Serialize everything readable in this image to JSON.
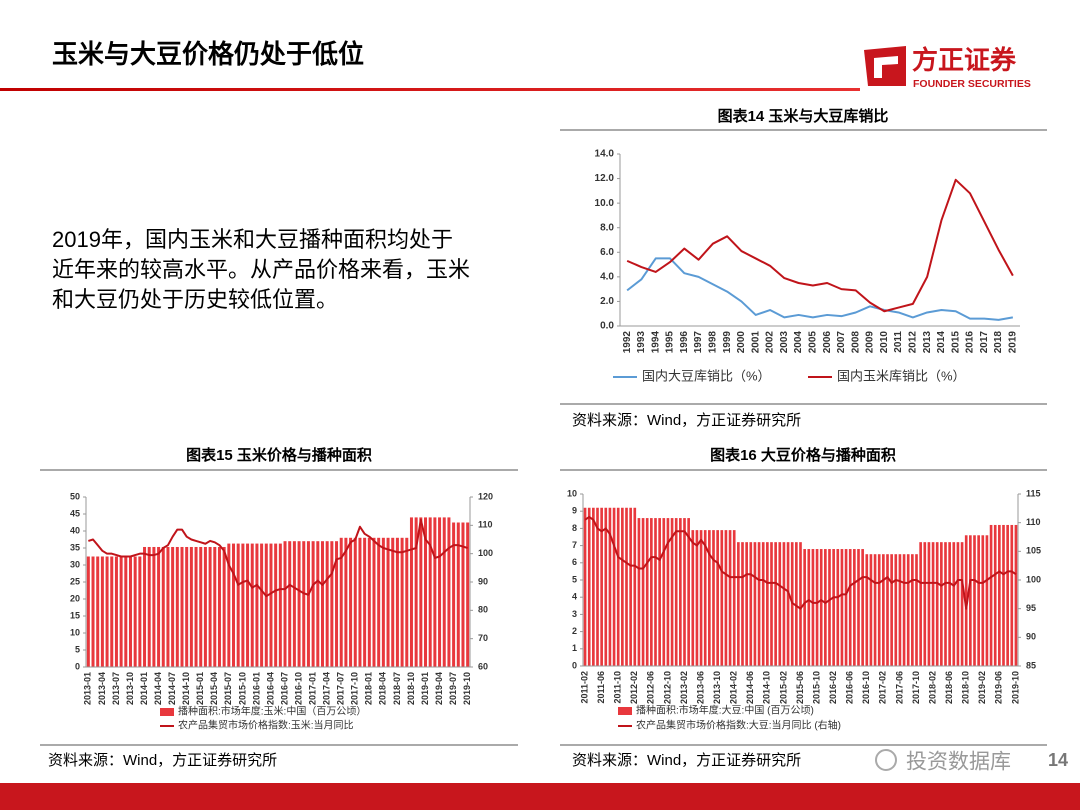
{
  "header": {
    "title": "玉米与大豆价格仍处于低位"
  },
  "logo": {
    "name": "方正证券",
    "subtitle": "FOUNDER SECURITIES"
  },
  "body_text": [
    "2019年，国内玉米和大豆播种面积均处于",
    "近年来的较高水平。从产品价格来看，玉米",
    "和大豆仍处于历史较低位置。"
  ],
  "chart_data": [
    {
      "type": "line",
      "title": "图表14 玉米与大豆库销比",
      "source": "资料来源：Wind，方正证券研究所",
      "categories": [
        "1992",
        "1993",
        "1994",
        "1995",
        "1996",
        "1997",
        "1998",
        "1999",
        "2000",
        "2001",
        "2002",
        "2003",
        "2004",
        "2005",
        "2006",
        "2007",
        "2008",
        "2009",
        "2010",
        "2011",
        "2012",
        "2013",
        "2014",
        "2015",
        "2016",
        "2017",
        "2018",
        "2019"
      ],
      "series": [
        {
          "name": "国内大豆库销比（%）",
          "color": "#5b9bd5",
          "values": [
            2.9,
            3.8,
            5.5,
            5.5,
            4.3,
            4.0,
            3.4,
            2.8,
            2.0,
            0.9,
            1.3,
            0.7,
            0.9,
            0.7,
            0.9,
            0.8,
            1.1,
            1.6,
            1.3,
            1.1,
            0.7,
            1.1,
            1.3,
            1.2,
            0.6,
            0.6,
            0.5,
            0.7
          ]
        },
        {
          "name": "国内玉米库销比（%）",
          "color": "#c0141a",
          "values": [
            5.3,
            4.8,
            4.4,
            5.2,
            6.3,
            5.4,
            6.7,
            7.3,
            6.1,
            5.5,
            4.9,
            3.9,
            3.5,
            3.3,
            3.5,
            3.0,
            2.9,
            1.9,
            1.2,
            1.5,
            1.8,
            4.0,
            8.6,
            11.9,
            10.8,
            8.5,
            6.2,
            4.1
          ]
        }
      ],
      "ylim": [
        0,
        14
      ],
      "yticks": [
        {
          "value": 0,
          "label": "0.0"
        },
        {
          "value": 2,
          "label": "2.0"
        },
        {
          "value": 4,
          "label": "4.0"
        },
        {
          "value": 6,
          "label": "6.0"
        },
        {
          "value": 8,
          "label": "8.0"
        },
        {
          "value": 10,
          "label": "10.0"
        },
        {
          "value": 12,
          "label": "12.0"
        },
        {
          "value": 14,
          "label": "14.0"
        }
      ],
      "grid": false,
      "legend": "bottom"
    },
    {
      "type": "bar-line",
      "title": "图表15 玉米价格与播种面积",
      "source": "资料来源：Wind，方正证券研究所",
      "categories": [
        "2013-01",
        null,
        null,
        "2013-04",
        null,
        null,
        "2013-07",
        null,
        null,
        "2013-10",
        null,
        null,
        "2014-01",
        null,
        null,
        "2014-04",
        null,
        null,
        "2014-07",
        null,
        null,
        "2014-10",
        null,
        null,
        "2015-01",
        null,
        null,
        "2015-04",
        null,
        null,
        "2015-07",
        null,
        null,
        "2015-10",
        null,
        null,
        "2016-01",
        null,
        null,
        "2016-04",
        null,
        null,
        "2016-07",
        null,
        null,
        "2016-10",
        null,
        null,
        "2017-01",
        null,
        null,
        "2017-04",
        null,
        null,
        "2017-07",
        null,
        null,
        "2017-10",
        null,
        null,
        "2018-01",
        null,
        null,
        "2018-04",
        null,
        null,
        "2018-07",
        null,
        null,
        "2018-10",
        null,
        null,
        "2019-01",
        null,
        null,
        "2019-04",
        null,
        null,
        "2019-07",
        null,
        null,
        "2019-10"
      ],
      "series": [
        {
          "name": "播种面积:市场年度:玉米:中国（百万公顷）",
          "type": "bar",
          "color": "#e8383d",
          "values": [
            32.5,
            32.5,
            32.5,
            32.5,
            32.5,
            32.5,
            32.5,
            32.5,
            32.5,
            32.5,
            32.5,
            32.5,
            35.3,
            35.3,
            35.3,
            35.3,
            35.3,
            35.3,
            35.3,
            35.3,
            35.3,
            35.3,
            35.3,
            35.3,
            35.3,
            35.3,
            35.3,
            35.3,
            35.3,
            35.3,
            36.3,
            36.3,
            36.3,
            36.3,
            36.3,
            36.3,
            36.3,
            36.3,
            36.3,
            36.3,
            36.3,
            36.3,
            37,
            37,
            37,
            37,
            37,
            37,
            37,
            37,
            37,
            37,
            37,
            37,
            38,
            38,
            38,
            38,
            38,
            38,
            38,
            38,
            38,
            38,
            38,
            38,
            38,
            38,
            38,
            44,
            44,
            44,
            44,
            44,
            44,
            44,
            44,
            44,
            42.5,
            42.5,
            42.5,
            42.5
          ]
        },
        {
          "name": "农产品集贸市场价格指数:玉米:当月同比",
          "type": "line",
          "axis": "y2",
          "color": "#c0141a",
          "values": [
            104.5,
            105,
            103,
            101,
            100,
            100,
            99.5,
            99,
            99,
            99,
            99.5,
            100,
            100,
            99.5,
            99.5,
            100,
            102,
            103,
            106,
            108.5,
            108.5,
            106,
            105,
            104.5,
            104,
            103.5,
            104.5,
            104,
            103,
            101,
            96,
            93,
            89,
            90,
            90.5,
            88,
            89,
            87,
            85,
            86,
            87,
            87.5,
            87.5,
            89,
            88,
            87,
            86,
            85.5,
            89,
            90.5,
            89,
            91,
            93,
            98,
            98.5,
            101,
            104,
            105,
            109.5,
            107,
            106,
            104.5,
            103,
            102,
            101.5,
            101,
            100.5,
            100.5,
            101,
            101.5,
            102,
            112,
            105,
            103,
            98.5,
            99,
            100.5,
            102,
            103,
            103,
            102.5,
            102
          ]
        }
      ],
      "ylim": [
        0,
        50
      ],
      "yticks": [
        0,
        5,
        10,
        15,
        20,
        25,
        30,
        35,
        40,
        45,
        50
      ],
      "y2lim": [
        60,
        120
      ],
      "y2ticks": [
        60,
        70,
        80,
        90,
        100,
        110,
        120
      ],
      "legend": "bottom"
    },
    {
      "type": "bar-line",
      "title": "图表16 大豆价格与播种面积",
      "source": "资料来源：Wind，方正证券研究所",
      "categories": [
        "2011-02",
        null,
        null,
        null,
        "2011-06",
        null,
        null,
        null,
        "2011-10",
        null,
        null,
        null,
        "2012-02",
        null,
        null,
        null,
        "2012-06",
        null,
        null,
        null,
        "2012-10",
        null,
        null,
        null,
        "2013-02",
        null,
        null,
        null,
        "2013-06",
        null,
        null,
        null,
        "2013-10",
        null,
        null,
        null,
        "2014-02",
        null,
        null,
        null,
        "2014-06",
        null,
        null,
        null,
        "2014-10",
        null,
        null,
        null,
        "2015-02",
        null,
        null,
        null,
        "2015-06",
        null,
        null,
        null,
        "2015-10",
        null,
        null,
        null,
        "2016-02",
        null,
        null,
        null,
        "2016-06",
        null,
        null,
        null,
        "2016-10",
        null,
        null,
        null,
        "2017-02",
        null,
        null,
        null,
        "2017-06",
        null,
        null,
        null,
        "2017-10",
        null,
        null,
        null,
        "2018-02",
        null,
        null,
        null,
        "2018-06",
        null,
        null,
        null,
        "2018-10",
        null,
        null,
        null,
        "2019-02",
        null,
        null,
        null,
        "2019-06",
        null,
        null,
        null,
        "2019-10"
      ],
      "series": [
        {
          "name": "播种面积:市场年度:大豆:中国 (百万公顷)",
          "type": "bar",
          "color": "#e8383d",
          "values": [
            9.2,
            9.2,
            9.2,
            9.2,
            9.2,
            9.2,
            9.2,
            9.2,
            9.2,
            9.2,
            9.2,
            9.2,
            9.2,
            8.6,
            8.6,
            8.6,
            8.6,
            8.6,
            8.6,
            8.6,
            8.6,
            8.6,
            8.6,
            8.6,
            8.6,
            8.6,
            7.9,
            7.9,
            7.9,
            7.9,
            7.9,
            7.9,
            7.9,
            7.9,
            7.9,
            7.9,
            7.9,
            7.2,
            7.2,
            7.2,
            7.2,
            7.2,
            7.2,
            7.2,
            7.2,
            7.2,
            7.2,
            7.2,
            7.2,
            7.2,
            7.2,
            7.2,
            7.2,
            6.8,
            6.8,
            6.8,
            6.8,
            6.8,
            6.8,
            6.8,
            6.8,
            6.8,
            6.8,
            6.8,
            6.8,
            6.8,
            6.8,
            6.8,
            6.5,
            6.5,
            6.5,
            6.5,
            6.5,
            6.5,
            6.5,
            6.5,
            6.5,
            6.5,
            6.5,
            6.5,
            6.5,
            7.2,
            7.2,
            7.2,
            7.2,
            7.2,
            7.2,
            7.2,
            7.2,
            7.2,
            7.2,
            7.2,
            7.6,
            7.6,
            7.6,
            7.6,
            7.6,
            7.6,
            8.2,
            8.2,
            8.2,
            8.2,
            8.2,
            8.2,
            8.2
          ]
        },
        {
          "name": "农产品集贸市场价格指数:大豆:当月同比 (右轴)",
          "type": "line",
          "axis": "y2",
          "color": "#c0141a",
          "values": [
            110.5,
            111,
            110.5,
            109,
            108.5,
            109,
            108,
            106,
            104,
            103.5,
            103,
            102.5,
            102.5,
            102,
            102,
            103,
            104,
            104,
            103.5,
            105,
            106.5,
            107.5,
            108.5,
            108.5,
            108.5,
            107.5,
            106.5,
            106,
            107,
            106,
            104.5,
            103.5,
            103,
            101.5,
            101,
            100.5,
            100.5,
            100.5,
            100.5,
            101,
            101,
            100.5,
            100,
            100,
            99.5,
            99.5,
            99.5,
            99,
            98.5,
            98,
            96,
            95.5,
            95,
            96,
            96.5,
            96,
            96,
            96.5,
            96,
            96.5,
            97,
            97,
            97.5,
            97.5,
            99,
            99.5,
            100,
            100.5,
            100.5,
            100,
            99.5,
            99.5,
            100,
            100.5,
            99.5,
            100,
            99.8,
            99.5,
            99.5,
            100,
            100,
            99.5,
            99.5,
            99.5,
            99.5,
            99.5,
            99,
            99.5,
            99.5,
            99,
            100,
            100,
            95,
            100,
            100,
            99.5,
            99.5,
            100,
            100.5,
            101,
            101.5,
            101,
            101.5,
            101.5,
            101
          ]
        }
      ],
      "ylim": [
        0,
        10
      ],
      "yticks": [
        0,
        1,
        2,
        3,
        4,
        5,
        6,
        7,
        8,
        9,
        10
      ],
      "y2lim": [
        85,
        115
      ],
      "y2ticks": [
        85,
        90,
        95,
        100,
        105,
        110,
        115
      ],
      "legend": "bottom"
    }
  ],
  "page_number": "14",
  "watermark": "投资数据库"
}
